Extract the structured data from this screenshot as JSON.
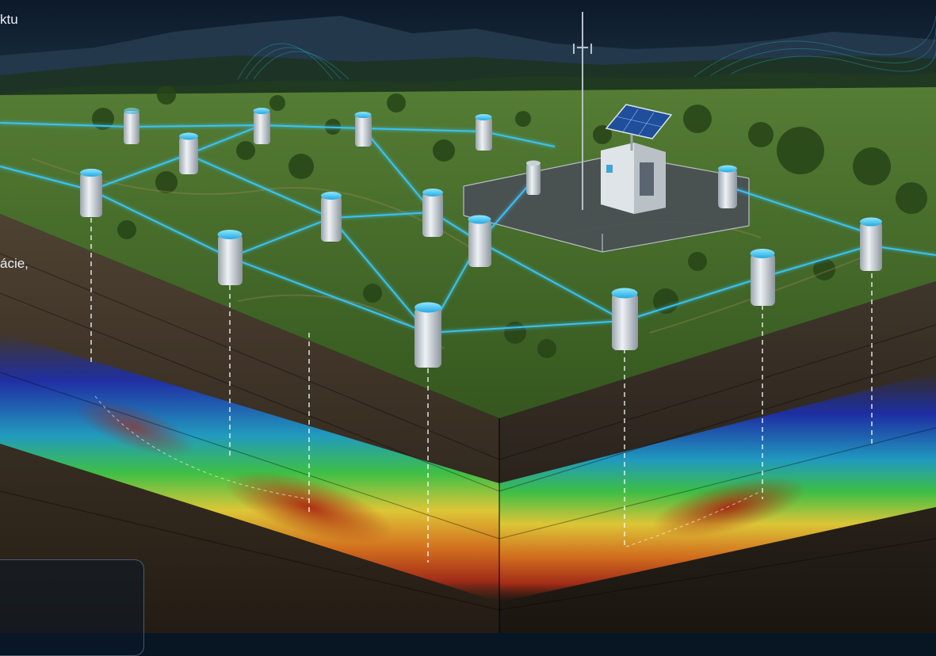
{
  "overlay": {
    "fragment_top": "ktu",
    "fragment_mid": "ácie,"
  },
  "colors": {
    "sky": "#0b1a2b",
    "grass": "#3f6a2a",
    "soil": "#3a2f24",
    "link": "#38c9ff",
    "node_cap": "#3cc4f0",
    "anomaly_hot": "#b0301a",
    "anomaly_cold": "#1a36c8"
  },
  "scene": {
    "sensor_icon": "cylindrical-sensor-node",
    "station_icon": "solar-powered-monitoring-station",
    "tower_icon": "communication-tower"
  }
}
